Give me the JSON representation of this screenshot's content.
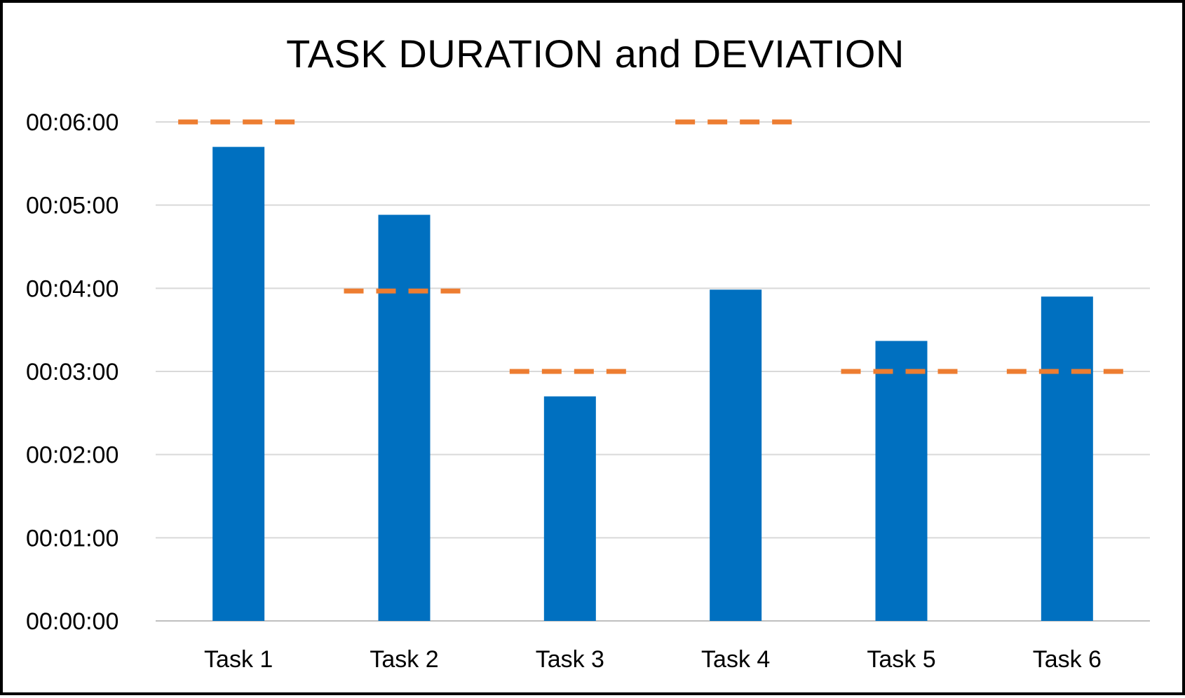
{
  "chart_data": {
    "type": "bar",
    "title": "TASK DURATION and DEVIATION",
    "xlabel": "",
    "ylabel": "",
    "categories": [
      "Task 1",
      "Task 2",
      "Task 3",
      "Task 4",
      "Task 5",
      "Task 6"
    ],
    "series": [
      {
        "type": "bar",
        "values": [
          "00:05:42",
          "00:04:53",
          "00:02:42",
          "00:03:59",
          "00:03:22",
          "00:03:54"
        ],
        "color": "#0070C0"
      },
      {
        "type": "dashed-target",
        "values": [
          "00:06:00",
          "00:03:58",
          "00:03:00",
          "00:06:00",
          "00:03:00",
          "00:03:00"
        ],
        "color": "#ED7D31"
      }
    ],
    "y_ticks": [
      "00:00:00",
      "00:01:00",
      "00:02:00",
      "00:03:00",
      "00:04:00",
      "00:05:00",
      "00:06:00"
    ],
    "ylim": [
      "00:00:00",
      "00:06:00"
    ],
    "grid": true,
    "legend": "none"
  },
  "colors": {
    "bar": "#0070C0",
    "target": "#ED7D31",
    "gridline": "#D9D9D9",
    "frame": "#000000"
  }
}
